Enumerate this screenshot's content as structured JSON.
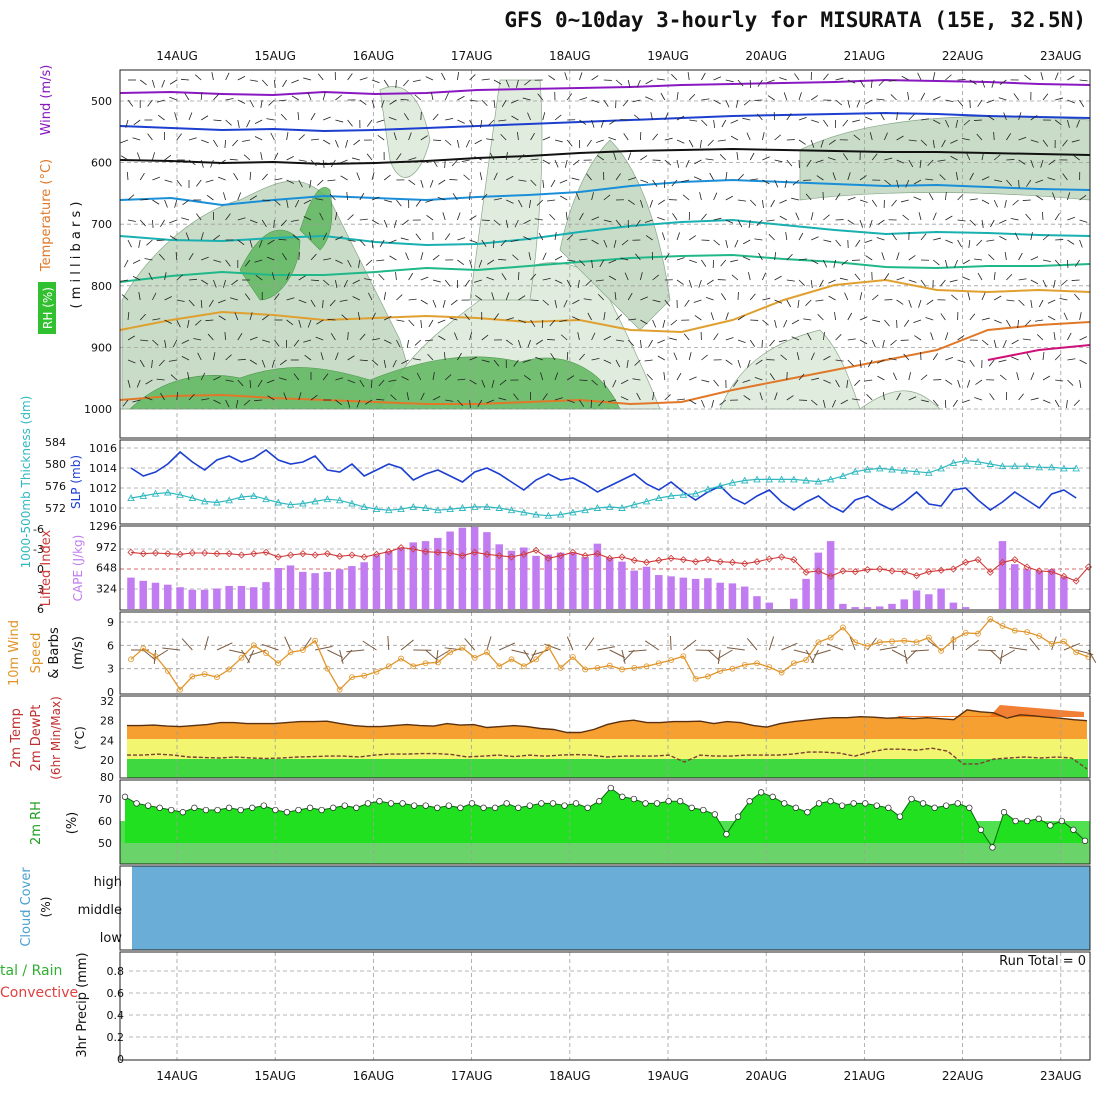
{
  "header": {
    "title": "GFS 0~10day 3-hourly for MISURATA (15E, 32.5N)"
  },
  "dates": [
    "14AUG",
    "15AUG",
    "16AUG",
    "17AUG",
    "18AUG",
    "19AUG",
    "20AUG",
    "21AUG",
    "22AUG",
    "23AUG"
  ],
  "colors": {
    "grid": "#a0a0a0",
    "slp": "#1c3fd0",
    "thickness": "#30b8c0",
    "lifted": "#d03a3a",
    "cape": "#c07cf0",
    "wind10": "#e0952a",
    "barb": "#7a5a40",
    "temp_fill": "#f5a030",
    "temp_hot": "#f06a10",
    "band_yellow": "#f2f570",
    "band_green": "#40d840",
    "rh_fill": "#20e020",
    "rh_fill2": "#60e060",
    "cloud": "#6aaed8",
    "rh_upper": "#9cc79c"
  },
  "panels": {
    "upper": {
      "label_wind": "Wind (m/s)",
      "label_temp": "Temperature (°C)",
      "label_rh": "RH (%)",
      "label_unit": "( m i l l i b a r s )",
      "levels": [
        500,
        600,
        700,
        800,
        900,
        1000
      ]
    },
    "slp": {
      "label_thk": "1000-500mb Thickness (dm)",
      "label_slp": "SLP (mb)",
      "ticks_left": [
        584,
        580,
        576,
        572
      ],
      "ticks_right": [
        1016,
        1014,
        1012,
        1010
      ]
    },
    "cape": {
      "label_li": "Lifted Index",
      "label_cape": "CAPE (J/kg)",
      "ticks_left": [
        -6,
        -3,
        0,
        3,
        6
      ],
      "ticks_right": [
        1296,
        972,
        648,
        324
      ]
    },
    "wind10": {
      "label1": "10m Wind",
      "label2": "Speed",
      "label3": "& Barbs",
      "unit": "(m/s)",
      "ticks": [
        9,
        6,
        3,
        0
      ]
    },
    "temp": {
      "label1": "2m Temp",
      "label2": "2m DewPt",
      "label3": "(6hr Min/Max)",
      "unit": "(°C)",
      "ticks": [
        32,
        28,
        24,
        20,
        80
      ]
    },
    "rh": {
      "label": "2m RH",
      "unit": "(%)",
      "ticks": [
        70,
        60,
        50
      ]
    },
    "cloud": {
      "label": "Cloud Cover",
      "unit": "(%)",
      "levels": [
        "high",
        "middle",
        "low"
      ]
    },
    "precip": {
      "label1": "tal / Rain",
      "label2": "Convective",
      "label3": "3hr Precip (mm)",
      "run_total": "Run Total = 0",
      "ticks": [
        "0.8",
        "0.6",
        "0.4",
        "0.2",
        "0"
      ]
    }
  },
  "chart_data": {
    "type": "line",
    "time_axis": {
      "start": "13AUG 12Z",
      "step_hours": 3,
      "tick_labels": [
        "14AUG",
        "15AUG",
        "16AUG",
        "17AUG",
        "18AUG",
        "19AUG",
        "20AUG",
        "21AUG",
        "22AUG",
        "23AUG"
      ]
    },
    "series": [
      {
        "name": "SLP (mb)",
        "values": [
          1014.0,
          1013.2,
          1013.6,
          1014.4,
          1015.6,
          1014.6,
          1013.8,
          1014.8,
          1015.2,
          1014.6,
          1015.0,
          1015.8,
          1014.8,
          1014.4,
          1014.6,
          1015.2,
          1013.8,
          1013.6,
          1014.4,
          1013.2,
          1013.8,
          1014.4,
          1014.0,
          1012.8,
          1013.4,
          1013.8,
          1013.2,
          1012.6,
          1013.6,
          1014.0,
          1013.4,
          1012.6,
          1011.8,
          1012.8,
          1013.4,
          1012.8,
          1013.0,
          1012.4,
          1011.6,
          1012.2,
          1012.8,
          1013.4,
          1012.4,
          1011.8,
          1012.6,
          1011.6,
          1010.8,
          1011.6,
          1012.2,
          1011.0,
          1010.4,
          1011.2,
          1011.8,
          1010.6,
          1009.8,
          1010.6,
          1011.2,
          1010.2,
          1009.6,
          1010.8,
          1011.2,
          1010.4,
          1009.8,
          1010.6,
          1011.6,
          1010.4,
          1010.2,
          1011.8,
          1012.0,
          1010.8,
          1009.8,
          1010.6,
          1011.6,
          1010.8,
          1010.0,
          1011.4,
          1011.8,
          1011.0
        ]
      },
      {
        "name": "1000-500mb Thickness (dm)",
        "values": [
          573.8,
          574.2,
          574.6,
          574.8,
          574.4,
          573.8,
          573.2,
          573.0,
          573.4,
          574.0,
          574.2,
          573.6,
          573.0,
          572.6,
          572.8,
          573.2,
          573.6,
          573.4,
          572.8,
          572.2,
          571.8,
          571.6,
          571.8,
          572.2,
          572.0,
          571.6,
          571.8,
          572.0,
          572.2,
          572.2,
          572.0,
          571.6,
          571.2,
          570.8,
          570.6,
          570.8,
          571.2,
          571.6,
          572.0,
          572.2,
          572.0,
          572.6,
          573.2,
          573.8,
          574.2,
          574.4,
          574.6,
          575.4,
          576.0,
          576.6,
          577.0,
          577.2,
          577.2,
          577.2,
          577.2,
          577.0,
          576.8,
          577.2,
          577.8,
          578.6,
          579.0,
          579.2,
          579.0,
          578.8,
          578.6,
          578.4,
          579.2,
          580.2,
          580.6,
          580.4,
          580.0,
          579.6,
          579.6,
          579.6,
          579.4,
          579.4,
          579.2,
          579.2
        ]
      },
      {
        "name": "Lifted Index",
        "values": [
          -2.5,
          -2.3,
          -2.4,
          -2.3,
          -2.2,
          -2.4,
          -2.4,
          -2.3,
          -2.3,
          -2.1,
          -2.3,
          -2.5,
          -1.8,
          -2.1,
          -2.3,
          -2.1,
          -2.3,
          -1.9,
          -2.1,
          -1.8,
          -2.2,
          -2.6,
          -3.2,
          -3.0,
          -2.6,
          -2.5,
          -2.4,
          -2.0,
          -2.5,
          -2.2,
          -2.0,
          -1.8,
          -2.2,
          -2.8,
          -1.6,
          -2.0,
          -2.5,
          -2.0,
          -2.3,
          -1.6,
          -1.8,
          -1.3,
          -1.0,
          -1.3,
          -1.6,
          -1.4,
          -1.1,
          -1.4,
          -1.1,
          -1.0,
          -0.8,
          -1.1,
          -1.5,
          -1.8,
          -1.4,
          0.5,
          0.3,
          1.1,
          0.3,
          0.4,
          0.1,
          0.0,
          0.3,
          0.4,
          1.0,
          0.4,
          0.2,
          0.0,
          -1.0,
          -1.4,
          0.5,
          -1.0,
          -1.4,
          -0.3,
          0.3,
          0.4,
          1.1,
          1.8,
          -0.3
        ]
      },
      {
        "name": "CAPE (J/kg)",
        "values": [
          490,
          440,
          410,
          380,
          340,
          300,
          300,
          320,
          360,
          360,
          340,
          420,
          640,
          680,
          580,
          560,
          580,
          620,
          670,
          730,
          840,
          900,
          960,
          1040,
          1060,
          1110,
          1210,
          1270,
          1280,
          1200,
          1010,
          910,
          960,
          830,
          850,
          880,
          880,
          810,
          1020,
          800,
          740,
          600,
          660,
          530,
          510,
          490,
          470,
          480,
          410,
          400,
          350,
          200,
          100,
          0,
          160,
          470,
          880,
          1060,
          80,
          30,
          30,
          40,
          80,
          150,
          290,
          230,
          320,
          100,
          30,
          0,
          0,
          1060,
          700,
          620,
          600,
          620,
          500,
          0,
          400,
          540,
          460,
          0,
          530,
          560,
          150
        ]
      },
      {
        "name": "10m Wind Speed (m/s)",
        "values": [
          4.2,
          5.6,
          4.6,
          2.7,
          0.3,
          2.0,
          2.3,
          1.9,
          2.9,
          4.4,
          6.0,
          5.0,
          3.7,
          5.1,
          5.4,
          6.6,
          3.0,
          0.3,
          1.9,
          2.1,
          2.6,
          3.3,
          4.3,
          3.3,
          3.7,
          3.8,
          5.1,
          5.7,
          4.4,
          5.1,
          3.3,
          4.2,
          3.3,
          4.2,
          5.8,
          3.1,
          4.5,
          2.9,
          3.1,
          3.4,
          2.9,
          3.1,
          3.3,
          3.7,
          4.1,
          4.6,
          1.7,
          2.0,
          2.7,
          3.0,
          3.5,
          3.7,
          3.2,
          2.5,
          3.7,
          4.1,
          6.4,
          7.0,
          8.3,
          6.4,
          5.9,
          6.4,
          6.5,
          6.6,
          6.4,
          7.0,
          5.3,
          6.7,
          7.6,
          7.5,
          9.4,
          8.5,
          7.9,
          7.7,
          7.2,
          6.2,
          6.5,
          5.1,
          4.5
        ]
      },
      {
        "name": "2m Temp (°C)",
        "values": [
          27.0,
          27.0,
          27.1,
          26.9,
          26.8,
          27.0,
          27.2,
          27.6,
          27.6,
          27.4,
          27.4,
          27.4,
          27.6,
          27.8,
          27.8,
          27.9,
          27.4,
          27.0,
          26.8,
          26.8,
          27.0,
          27.2,
          27.0,
          26.9,
          27.4,
          27.1,
          27.2,
          26.6,
          26.8,
          27.0,
          26.8,
          26.4,
          26.2,
          25.6,
          25.6,
          26.2,
          27.2,
          27.8,
          28.1,
          27.6,
          27.6,
          27.8,
          27.8,
          27.9,
          27.4,
          27.8,
          27.6,
          27.0,
          26.7,
          27.4,
          27.8,
          28.1,
          28.4,
          28.6,
          28.6,
          28.8,
          28.7,
          28.5,
          28.6,
          28.4,
          28.6,
          28.4,
          28.2,
          30.2,
          29.8,
          29.6,
          28.5,
          29.2,
          29.0,
          28.7,
          28.5,
          28.2,
          28.0
        ]
      },
      {
        "name": "2m DewPt (°C)",
        "values": [
          21.0,
          21.0,
          21.2,
          21.0,
          20.6,
          20.5,
          20.4,
          20.6,
          20.4,
          20.3,
          20.4,
          20.6,
          20.7,
          20.8,
          20.8,
          20.6,
          21.0,
          21.2,
          21.2,
          21.3,
          21.3,
          21.1,
          20.6,
          20.8,
          21.0,
          20.7,
          21.0,
          20.8,
          21.0,
          21.1,
          21.0,
          20.6,
          20.8,
          20.8,
          20.8,
          21.0,
          19.6,
          21.0,
          20.8,
          20.8,
          21.0,
          21.0,
          21.0,
          21.2,
          21.6,
          21.6,
          21.4,
          20.8,
          21.6,
          22.2,
          22.2,
          22.0,
          22.4,
          21.8,
          19.2,
          19.2,
          20.2,
          20.4,
          20.6,
          20.4,
          20.6,
          20.4,
          18.2
        ]
      },
      {
        "name": "2m RH (%)",
        "values": [
          71,
          68,
          67,
          66,
          65,
          64,
          66,
          65,
          65,
          66,
          65,
          66,
          67,
          65,
          64,
          65,
          66,
          65,
          66,
          67,
          66,
          68,
          69,
          68,
          68,
          67,
          67,
          66,
          67,
          66,
          68,
          66,
          66,
          68,
          66,
          67,
          68,
          68,
          67,
          68,
          66,
          69,
          75,
          71,
          70,
          68,
          68,
          69,
          69,
          66,
          65,
          63,
          54,
          62,
          69,
          73,
          71,
          68,
          66,
          64,
          68,
          69,
          67,
          68,
          68,
          67,
          66,
          62,
          70,
          68,
          66,
          67,
          68,
          66,
          56,
          48,
          64,
          60,
          60,
          61,
          58,
          60,
          56,
          51
        ]
      }
    ]
  }
}
